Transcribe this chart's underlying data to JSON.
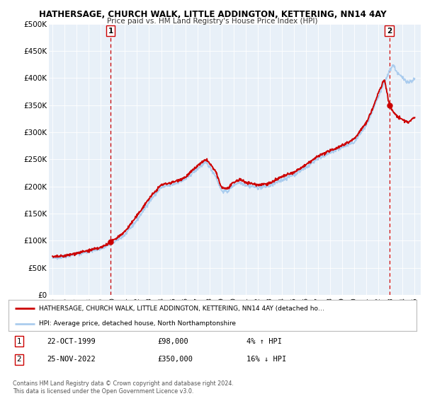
{
  "title": "HATHERSAGE, CHURCH WALK, LITTLE ADDINGTON, KETTERING, NN14 4AY",
  "subtitle": "Price paid vs. HM Land Registry's House Price Index (HPI)",
  "bg_color": "#e8f0f8",
  "ylabel": "",
  "ylim": [
    0,
    500000
  ],
  "yticks": [
    0,
    50000,
    100000,
    150000,
    200000,
    250000,
    300000,
    350000,
    400000,
    450000,
    500000
  ],
  "ytick_labels": [
    "£0",
    "£50K",
    "£100K",
    "£150K",
    "£200K",
    "£250K",
    "£300K",
    "£350K",
    "£400K",
    "£450K",
    "£500K"
  ],
  "sale1_date": 1999.81,
  "sale1_price": 98000,
  "sale2_date": 2022.9,
  "sale2_price": 350000,
  "legend_line1": "HATHERSAGE, CHURCH WALK, LITTLE ADDINGTON, KETTERING, NN14 4AY (detached ho…",
  "legend_line2": "HPI: Average price, detached house, North Northamptonshire",
  "annotation1_date": "22-OCT-1999",
  "annotation1_price": "£98,000",
  "annotation1_hpi": "4% ↑ HPI",
  "annotation2_date": "25-NOV-2022",
  "annotation2_price": "£350,000",
  "annotation2_hpi": "16% ↓ HPI",
  "footer1": "Contains HM Land Registry data © Crown copyright and database right 2024.",
  "footer2": "This data is licensed under the Open Government Licence v3.0.",
  "red_line_color": "#cc0000",
  "blue_line_color": "#aaccee",
  "dashed_vline_color": "#cc0000",
  "xlim_start": 1994.7,
  "xlim_end": 2025.5,
  "xtick_years": [
    1995,
    1996,
    1997,
    1998,
    1999,
    2000,
    2001,
    2002,
    2003,
    2004,
    2005,
    2006,
    2007,
    2008,
    2009,
    2010,
    2011,
    2012,
    2013,
    2014,
    2015,
    2016,
    2017,
    2018,
    2019,
    2020,
    2021,
    2022,
    2023,
    2024,
    2025
  ]
}
